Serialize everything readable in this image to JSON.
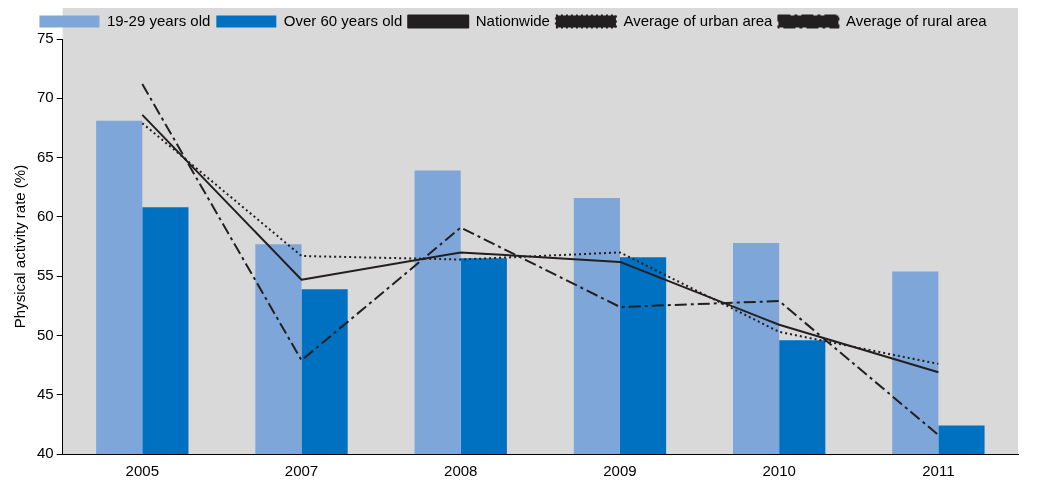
{
  "chart_data": {
    "type": "bar",
    "ylabel": "Physical activity rate (%)",
    "categories": [
      "2005",
      "2007",
      "2008",
      "2009",
      "2010",
      "2011"
    ],
    "series": [
      {
        "name": "19-29 years old",
        "type": "bar",
        "color": "#7fa6d8",
        "values": [
          68.1,
          57.7,
          63.9,
          61.6,
          57.8,
          55.4
        ]
      },
      {
        "name": "Over 60 years old",
        "type": "bar",
        "color": "#0070c0",
        "values": [
          60.8,
          53.9,
          56.5,
          56.6,
          49.6,
          42.4
        ]
      },
      {
        "name": "Nationwide",
        "type": "line",
        "color": "#231f20",
        "line_style": "solid",
        "values": [
          68.6,
          54.7,
          57.0,
          56.2,
          50.9,
          46.9
        ]
      },
      {
        "name": "Average of urban area",
        "type": "line",
        "color": "#231f20",
        "line_style": "dotted",
        "values": [
          67.9,
          56.7,
          56.4,
          57.0,
          50.3,
          47.6
        ]
      },
      {
        "name": "Average of rural area",
        "type": "line",
        "color": "#231f20",
        "line_style": "dashed",
        "values": [
          71.2,
          47.9,
          59.1,
          52.4,
          52.9,
          41.6
        ]
      }
    ],
    "ylim": [
      40,
      75
    ],
    "yticks": [
      40,
      45,
      50,
      55,
      60,
      65,
      70,
      75
    ],
    "grid": false,
    "legend": "top",
    "marker": "none"
  }
}
